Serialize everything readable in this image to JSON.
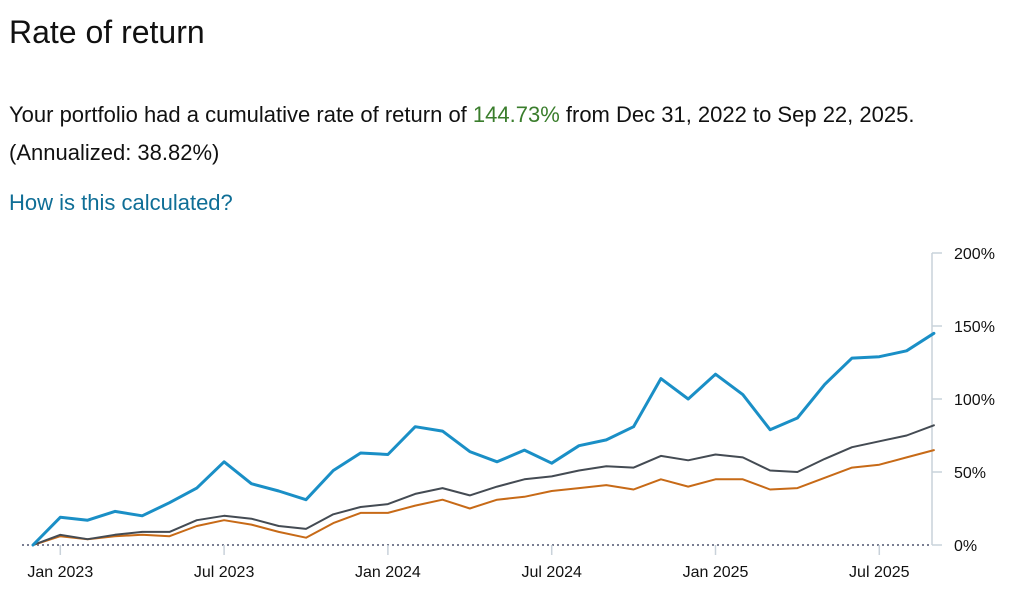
{
  "page": {
    "title": "Rate of return",
    "summary_before": "Your portfolio had a cumulative rate of return of ",
    "cumulative_return": "144.73%",
    "summary_after": " from Dec 31, 2022 to Sep 22, 2025. (Annualized: 38.82%)",
    "how_link": "How is this calculated?"
  },
  "colors": {
    "accent_green": "#3a7d2c",
    "link": "#0f6e96",
    "portfolio_line": "#1a8fc6",
    "benchmark_dark": "#444b53",
    "benchmark_orange": "#c76a17"
  },
  "chart_data": {
    "type": "line",
    "x": [
      "Dec 2022",
      "Jan 2023",
      "Feb 2023",
      "Mar 2023",
      "Apr 2023",
      "May 2023",
      "Jun 2023",
      "Jul 2023",
      "Aug 2023",
      "Sep 2023",
      "Oct 2023",
      "Nov 2023",
      "Dec 2023",
      "Jan 2024",
      "Feb 2024",
      "Mar 2024",
      "Apr 2024",
      "May 2024",
      "Jun 2024",
      "Jul 2024",
      "Aug 2024",
      "Sep 2024",
      "Oct 2024",
      "Nov 2024",
      "Dec 2024",
      "Jan 2025",
      "Feb 2025",
      "Mar 2025",
      "Apr 2025",
      "May 2025",
      "Jun 2025",
      "Jul 2025",
      "Aug 2025",
      "Sep 2025"
    ],
    "series": [
      {
        "values": [
          0,
          19,
          17,
          23,
          20,
          29,
          39,
          57,
          42,
          37,
          31,
          51,
          63,
          62,
          81,
          78,
          64,
          57,
          65,
          56,
          68,
          72,
          81,
          114,
          100,
          117,
          103,
          79,
          87,
          110,
          128,
          129,
          133,
          145
        ],
        "color": "#1a8fc6"
      },
      {
        "values": [
          0,
          7,
          4,
          7,
          9,
          9,
          17,
          20,
          18,
          13,
          11,
          21,
          26,
          28,
          35,
          39,
          34,
          40,
          45,
          47,
          51,
          54,
          53,
          61,
          58,
          62,
          60,
          51,
          50,
          59,
          67,
          71,
          75,
          82
        ],
        "color": "#444b53"
      },
      {
        "values": [
          0,
          6,
          4,
          6,
          7,
          6,
          13,
          17,
          14,
          9,
          5,
          15,
          22,
          22,
          27,
          31,
          25,
          31,
          33,
          37,
          39,
          41,
          38,
          45,
          40,
          45,
          45,
          38,
          39,
          46,
          53,
          55,
          60,
          65
        ],
        "color": "#c76a17"
      }
    ],
    "x_tick_labels": [
      {
        "label": "Jan 2023",
        "index": 1
      },
      {
        "label": "Jul 2023",
        "index": 7
      },
      {
        "label": "Jan 2024",
        "index": 13
      },
      {
        "label": "Jul 2024",
        "index": 19
      },
      {
        "label": "Jan 2025",
        "index": 25
      },
      {
        "label": "Jul 2025",
        "index": 31
      }
    ],
    "y_ticks": [
      {
        "value": 0,
        "label": "0%"
      },
      {
        "value": 50,
        "label": "50%"
      },
      {
        "value": 100,
        "label": "100%"
      },
      {
        "value": 150,
        "label": "150%"
      },
      {
        "value": 200,
        "label": "200%"
      }
    ],
    "ylim": [
      0,
      200
    ],
    "y_axis_position": "right",
    "grid": false,
    "zero_line": "dotted"
  }
}
